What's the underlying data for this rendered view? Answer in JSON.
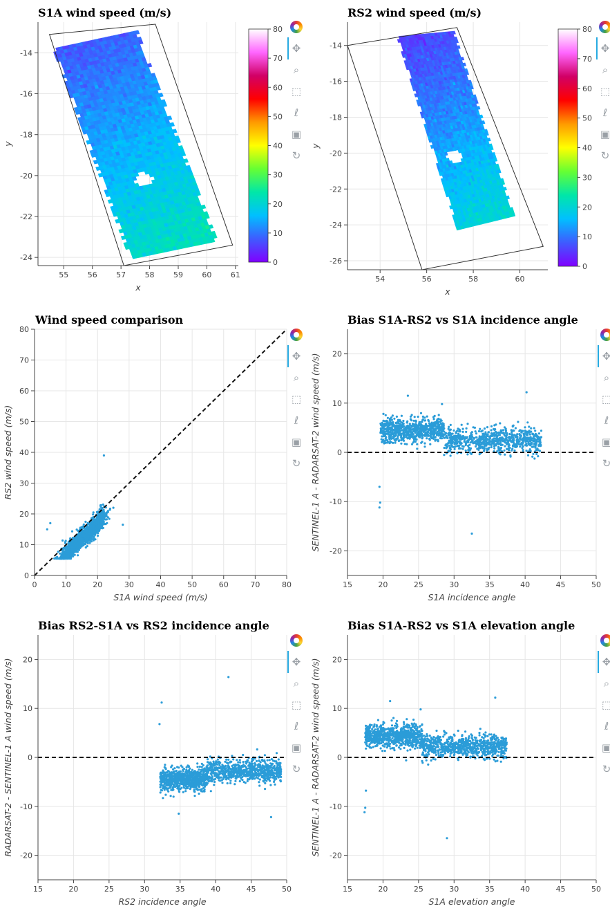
{
  "colors": {
    "point": "#2b9cd8",
    "grid": "#e6e6e6",
    "axis": "#444444",
    "toolbar_active": "#26aae1"
  },
  "toolbar": {
    "icons": [
      "bokeh-logo-icon",
      "pan-icon",
      "wheel-zoom-icon",
      "box-zoom-icon",
      "lasso-icon",
      "save-icon",
      "reset-icon"
    ]
  },
  "colorbar": {
    "ticks": [
      "0",
      "10",
      "20",
      "30",
      "40",
      "50",
      "60",
      "70",
      "80"
    ],
    "palette": [
      "#8000ff",
      "#3f5bff",
      "#00c0ff",
      "#00e7a8",
      "#66ff33",
      "#ffff00",
      "#ff9a00",
      "#ff0000",
      "#d10066",
      "#ff66ff",
      "#ffffff"
    ]
  },
  "chart_data": [
    {
      "id": "s1a_map",
      "type": "heatmap",
      "title": "S1A wind speed (m/s)",
      "xlabel": "x",
      "ylabel": "y",
      "xlim": [
        54.1,
        61.1
      ],
      "ylim": [
        -24.4,
        -12.5
      ],
      "xticks": [
        "55",
        "56",
        "57",
        "58",
        "59",
        "60",
        "61"
      ],
      "yticks": [
        "-14",
        "-16",
        "-18",
        "-20",
        "-22",
        "-24"
      ],
      "footprint": [
        [
          54.5,
          -13.1
        ],
        [
          58.2,
          -12.6
        ],
        [
          60.9,
          -23.4
        ],
        [
          57.1,
          -24.4
        ]
      ],
      "swath": [
        [
          54.6,
          -13.8
        ],
        [
          57.6,
          -12.9
        ],
        [
          60.4,
          -23.2
        ],
        [
          57.3,
          -24.1
        ]
      ],
      "hole": [
        57.8,
        -20.2
      ],
      "wind_range": [
        8,
        22
      ],
      "colorbar": true
    },
    {
      "id": "rs2_map",
      "type": "heatmap",
      "title": "RS2 wind speed (m/s)",
      "xlabel": "x",
      "ylabel": "y",
      "xlim": [
        52.6,
        61.2
      ],
      "ylim": [
        -26.5,
        -12.7
      ],
      "xticks": [
        "54",
        "56",
        "58",
        "60"
      ],
      "yticks": [
        "-14",
        "-16",
        "-18",
        "-20",
        "-22",
        "-24",
        "-26"
      ],
      "footprint": [
        [
          52.6,
          -14.0
        ],
        [
          57.3,
          -13.0
        ],
        [
          61.0,
          -25.2
        ],
        [
          55.8,
          -26.5
        ]
      ],
      "swath": [
        [
          54.7,
          -13.5
        ],
        [
          57.2,
          -13.2
        ],
        [
          59.8,
          -23.5
        ],
        [
          57.3,
          -24.3
        ]
      ],
      "hole": [
        57.2,
        -20.2
      ],
      "wind_range": [
        6,
        20
      ],
      "colorbar": true
    },
    {
      "id": "comparison",
      "type": "scatter",
      "title": "Wind speed comparison",
      "xlabel": "S1A wind speed (m/s)",
      "ylabel": "RS2 wind speed (m/s)",
      "xlim": [
        0,
        80
      ],
      "ylim": [
        0,
        80
      ],
      "xticks": [
        "0",
        "10",
        "20",
        "30",
        "40",
        "50",
        "60",
        "70",
        "80"
      ],
      "yticks": [
        "0",
        "10",
        "20",
        "30",
        "40",
        "50",
        "60",
        "70",
        "80"
      ],
      "reference_line": [
        [
          0,
          0
        ],
        [
          80,
          80
        ]
      ],
      "cluster": {
        "x_range": [
          8,
          22
        ],
        "y_center_offset": -3,
        "spread": 2.2
      },
      "outliers": [
        [
          22,
          39
        ],
        [
          5,
          17
        ],
        [
          4,
          15
        ],
        [
          28,
          16.5
        ],
        [
          25,
          22
        ]
      ],
      "n_points": 1400
    },
    {
      "id": "bias_s1a_inc",
      "type": "scatter",
      "title": "Bias S1A-RS2 vs S1A incidence angle",
      "xlabel": "S1A incidence angle",
      "ylabel": "SENTINEL-1 A - RADARSAT-2 wind speed (m/s)",
      "xlim": [
        15,
        50
      ],
      "ylim": [
        -25,
        25
      ],
      "xticks": [
        "15",
        "20",
        "25",
        "30",
        "35",
        "40",
        "45",
        "50"
      ],
      "yticks": [
        "-20",
        "-10",
        "0",
        "10",
        "20"
      ],
      "reference_line": [
        [
          15,
          0
        ],
        [
          50,
          0
        ]
      ],
      "segments": [
        {
          "x": [
            19.6,
            28.6
          ],
          "y_mean": 4.5,
          "spread": 1.2
        },
        {
          "x": [
            28.6,
            42.3
          ],
          "y_mean": 2.5,
          "spread": 1.2
        }
      ],
      "outliers": [
        [
          19.5,
          -11.2
        ],
        [
          19.6,
          -10.2
        ],
        [
          19.5,
          -7
        ],
        [
          23.5,
          11.5
        ],
        [
          32.5,
          -16.5
        ],
        [
          40.2,
          12.2
        ],
        [
          28.3,
          9.8
        ]
      ],
      "n_points": 1500
    },
    {
      "id": "bias_rs2_inc",
      "type": "scatter",
      "title": "Bias RS2-S1A vs RS2 incidence angle",
      "xlabel": "RS2 incidence angle",
      "ylabel": "RADARSAT-2 - SENTINEL-1 A wind speed (m/s)",
      "xlim": [
        15,
        50
      ],
      "ylim": [
        -25,
        25
      ],
      "xticks": [
        "15",
        "20",
        "25",
        "30",
        "35",
        "40",
        "45",
        "50"
      ],
      "yticks": [
        "-20",
        "-10",
        "0",
        "10",
        "20"
      ],
      "reference_line": [
        [
          15,
          0
        ],
        [
          50,
          0
        ]
      ],
      "segments": [
        {
          "x": [
            32.2,
            38.8
          ],
          "y_mean": -4.5,
          "spread": 1.2
        },
        {
          "x": [
            38.8,
            49.2
          ],
          "y_mean": -2.8,
          "spread": 1.2
        }
      ],
      "outliers": [
        [
          41.8,
          16.4
        ],
        [
          32.4,
          11.2
        ],
        [
          32.1,
          6.8
        ],
        [
          47.8,
          -12.2
        ],
        [
          34.8,
          -11.5
        ]
      ],
      "n_points": 1500
    },
    {
      "id": "bias_s1a_elev",
      "type": "scatter",
      "title": "Bias S1A-RS2 vs S1A elevation angle",
      "xlabel": "S1A elevation angle",
      "ylabel": "SENTINEL-1 A - RADARSAT-2 wind speed (m/s)",
      "xlim": [
        15,
        50
      ],
      "ylim": [
        -25,
        25
      ],
      "xticks": [
        "15",
        "20",
        "25",
        "30",
        "35",
        "40",
        "45",
        "50"
      ],
      "yticks": [
        "-20",
        "-10",
        "0",
        "10",
        "20"
      ],
      "reference_line": [
        [
          15,
          0
        ],
        [
          50,
          0
        ]
      ],
      "segments": [
        {
          "x": [
            17.5,
            25.5
          ],
          "y_mean": 4.3,
          "spread": 1.2
        },
        {
          "x": [
            25.5,
            37.4
          ],
          "y_mean": 2.3,
          "spread": 1.2
        }
      ],
      "outliers": [
        [
          17.4,
          -11.2
        ],
        [
          17.5,
          -10.3
        ],
        [
          17.6,
          -6.8
        ],
        [
          21.0,
          11.5
        ],
        [
          29.0,
          -16.5
        ],
        [
          35.8,
          12.2
        ],
        [
          25.3,
          9.8
        ]
      ],
      "n_points": 1500
    }
  ]
}
